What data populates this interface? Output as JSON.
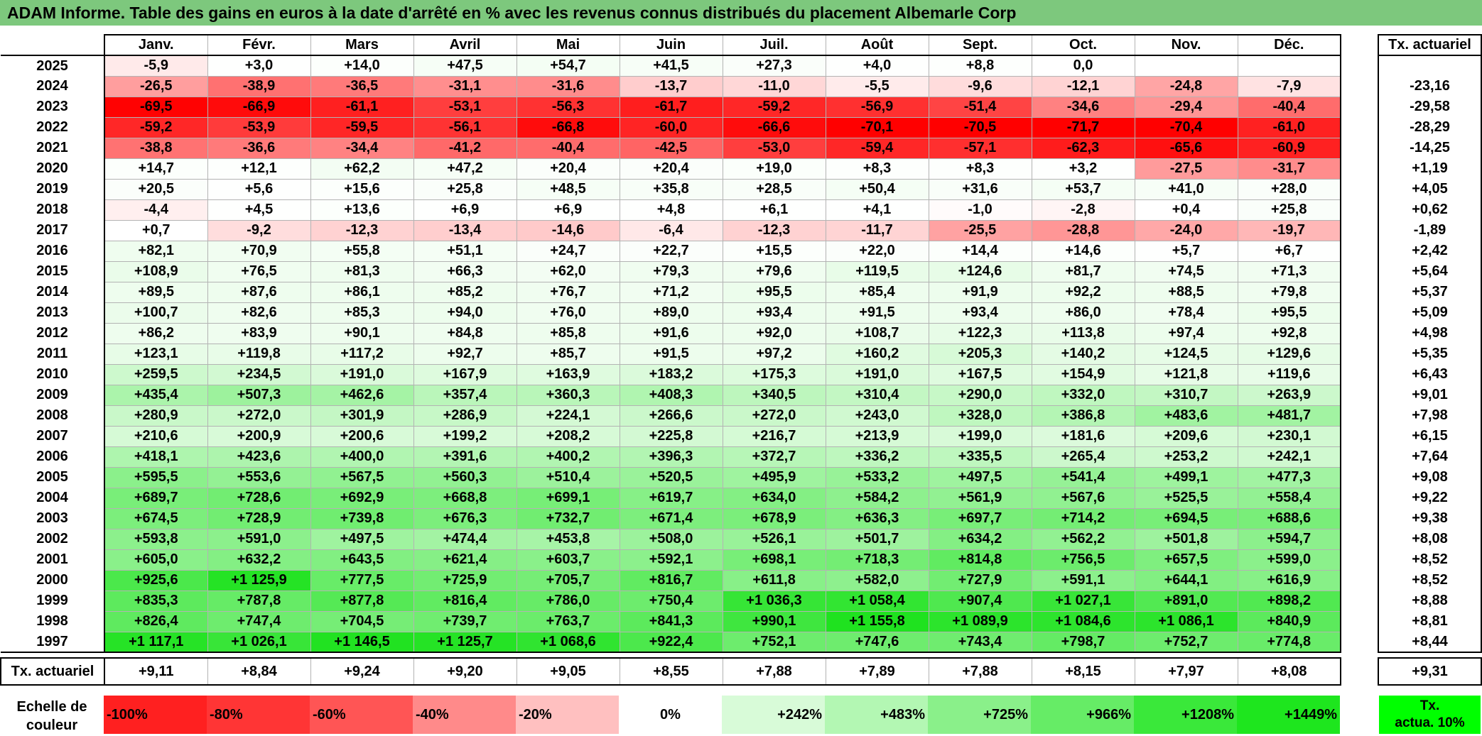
{
  "title": "ADAM Informe. Table des gains en euros à la date d'arrêté en % avec les revenus connus distribués du placement Albemarle Corp",
  "months": [
    "Janv.",
    "Févr.",
    "Mars",
    "Avril",
    "Mai",
    "Juin",
    "Juil.",
    "Août",
    "Sept.",
    "Oct.",
    "Nov.",
    "Déc."
  ],
  "rate_header": "Tx. actuariel",
  "rows": [
    {
      "year": "2025",
      "values": [
        "-5,9",
        "+3,0",
        "+14,0",
        "+47,5",
        "+54,7",
        "+41,5",
        "+27,3",
        "+4,0",
        "+8,8",
        "0,0",
        "",
        ""
      ],
      "rate": ""
    },
    {
      "year": "2024",
      "values": [
        "-26,5",
        "-38,9",
        "-36,5",
        "-31,1",
        "-31,6",
        "-13,7",
        "-11,0",
        "-5,5",
        "-9,6",
        "-12,1",
        "-24,8",
        "-7,9"
      ],
      "rate": "-23,16"
    },
    {
      "year": "2023",
      "values": [
        "-69,5",
        "-66,9",
        "-61,1",
        "-53,1",
        "-56,3",
        "-61,7",
        "-59,2",
        "-56,9",
        "-51,4",
        "-34,6",
        "-29,4",
        "-40,4"
      ],
      "rate": "-29,58"
    },
    {
      "year": "2022",
      "values": [
        "-59,2",
        "-53,9",
        "-59,5",
        "-56,1",
        "-66,8",
        "-60,0",
        "-66,6",
        "-70,1",
        "-70,5",
        "-71,7",
        "-70,4",
        "-61,0"
      ],
      "rate": "-28,29"
    },
    {
      "year": "2021",
      "values": [
        "-38,8",
        "-36,6",
        "-34,4",
        "-41,2",
        "-40,4",
        "-42,5",
        "-53,0",
        "-59,4",
        "-57,1",
        "-62,3",
        "-65,6",
        "-60,9"
      ],
      "rate": "-14,25"
    },
    {
      "year": "2020",
      "values": [
        "+14,7",
        "+12,1",
        "+62,2",
        "+47,2",
        "+20,4",
        "+20,4",
        "+19,0",
        "+8,3",
        "+8,3",
        "+3,2",
        "-27,5",
        "-31,7"
      ],
      "rate": "+1,19"
    },
    {
      "year": "2019",
      "values": [
        "+20,5",
        "+5,6",
        "+15,6",
        "+25,8",
        "+48,5",
        "+35,8",
        "+28,5",
        "+50,4",
        "+31,6",
        "+53,7",
        "+41,0",
        "+28,0"
      ],
      "rate": "+4,05"
    },
    {
      "year": "2018",
      "values": [
        "-4,4",
        "+4,5",
        "+13,6",
        "+6,9",
        "+6,9",
        "+4,8",
        "+6,1",
        "+4,1",
        "-1,0",
        "-2,8",
        "+0,4",
        "+25,8"
      ],
      "rate": "+0,62"
    },
    {
      "year": "2017",
      "values": [
        "+0,7",
        "-9,2",
        "-12,3",
        "-13,4",
        "-14,6",
        "-6,4",
        "-12,3",
        "-11,7",
        "-25,5",
        "-28,8",
        "-24,0",
        "-19,7"
      ],
      "rate": "-1,89"
    },
    {
      "year": "2016",
      "values": [
        "+82,1",
        "+70,9",
        "+55,8",
        "+51,1",
        "+24,7",
        "+22,7",
        "+15,5",
        "+22,0",
        "+14,4",
        "+14,6",
        "+5,7",
        "+6,7"
      ],
      "rate": "+2,42"
    },
    {
      "year": "2015",
      "values": [
        "+108,9",
        "+76,5",
        "+81,3",
        "+66,3",
        "+62,0",
        "+79,3",
        "+79,6",
        "+119,5",
        "+124,6",
        "+81,7",
        "+74,5",
        "+71,3"
      ],
      "rate": "+5,64"
    },
    {
      "year": "2014",
      "values": [
        "+89,5",
        "+87,6",
        "+86,1",
        "+85,2",
        "+76,7",
        "+71,2",
        "+95,5",
        "+85,4",
        "+91,9",
        "+92,2",
        "+88,5",
        "+79,8"
      ],
      "rate": "+5,37"
    },
    {
      "year": "2013",
      "values": [
        "+100,7",
        "+82,6",
        "+85,3",
        "+94,0",
        "+76,0",
        "+89,0",
        "+93,4",
        "+91,5",
        "+93,4",
        "+86,0",
        "+78,4",
        "+95,5"
      ],
      "rate": "+5,09"
    },
    {
      "year": "2012",
      "values": [
        "+86,2",
        "+83,9",
        "+90,1",
        "+84,8",
        "+85,8",
        "+91,6",
        "+92,0",
        "+108,7",
        "+122,3",
        "+113,8",
        "+97,4",
        "+92,8"
      ],
      "rate": "+4,98"
    },
    {
      "year": "2011",
      "values": [
        "+123,1",
        "+119,8",
        "+117,2",
        "+92,7",
        "+85,7",
        "+91,5",
        "+97,2",
        "+160,2",
        "+205,3",
        "+140,2",
        "+124,5",
        "+129,6"
      ],
      "rate": "+5,35"
    },
    {
      "year": "2010",
      "values": [
        "+259,5",
        "+234,5",
        "+191,0",
        "+167,9",
        "+163,9",
        "+183,2",
        "+175,3",
        "+191,0",
        "+167,5",
        "+154,9",
        "+121,8",
        "+119,6"
      ],
      "rate": "+6,43"
    },
    {
      "year": "2009",
      "values": [
        "+435,4",
        "+507,3",
        "+462,6",
        "+357,4",
        "+360,3",
        "+408,3",
        "+340,5",
        "+310,4",
        "+290,0",
        "+332,0",
        "+310,7",
        "+263,9"
      ],
      "rate": "+9,01"
    },
    {
      "year": "2008",
      "values": [
        "+280,9",
        "+272,0",
        "+301,9",
        "+286,9",
        "+224,1",
        "+266,6",
        "+272,0",
        "+243,0",
        "+328,0",
        "+386,8",
        "+483,6",
        "+481,7"
      ],
      "rate": "+7,98"
    },
    {
      "year": "2007",
      "values": [
        "+210,6",
        "+200,9",
        "+200,6",
        "+199,2",
        "+208,2",
        "+225,8",
        "+216,7",
        "+213,9",
        "+199,0",
        "+181,6",
        "+209,6",
        "+230,1"
      ],
      "rate": "+6,15"
    },
    {
      "year": "2006",
      "values": [
        "+418,1",
        "+423,6",
        "+400,0",
        "+391,6",
        "+400,2",
        "+396,3",
        "+372,7",
        "+336,2",
        "+335,5",
        "+265,4",
        "+253,2",
        "+242,1"
      ],
      "rate": "+7,64"
    },
    {
      "year": "2005",
      "values": [
        "+595,5",
        "+553,6",
        "+567,5",
        "+560,3",
        "+510,4",
        "+520,5",
        "+495,9",
        "+533,2",
        "+497,5",
        "+541,4",
        "+499,1",
        "+477,3"
      ],
      "rate": "+9,08"
    },
    {
      "year": "2004",
      "values": [
        "+689,7",
        "+728,6",
        "+692,9",
        "+668,8",
        "+699,1",
        "+619,7",
        "+634,0",
        "+584,2",
        "+561,9",
        "+567,6",
        "+525,5",
        "+558,4"
      ],
      "rate": "+9,22"
    },
    {
      "year": "2003",
      "values": [
        "+674,5",
        "+728,9",
        "+739,8",
        "+676,3",
        "+732,7",
        "+671,4",
        "+678,9",
        "+636,3",
        "+697,7",
        "+714,2",
        "+694,5",
        "+688,6"
      ],
      "rate": "+9,38"
    },
    {
      "year": "2002",
      "values": [
        "+593,8",
        "+591,0",
        "+497,5",
        "+474,4",
        "+453,8",
        "+508,0",
        "+526,1",
        "+501,7",
        "+634,2",
        "+562,2",
        "+501,8",
        "+594,7"
      ],
      "rate": "+8,08"
    },
    {
      "year": "2001",
      "values": [
        "+605,0",
        "+632,2",
        "+643,5",
        "+621,4",
        "+603,7",
        "+592,1",
        "+698,1",
        "+718,3",
        "+814,8",
        "+756,5",
        "+657,5",
        "+599,0"
      ],
      "rate": "+8,52"
    },
    {
      "year": "2000",
      "values": [
        "+925,6",
        "+1 125,9",
        "+777,5",
        "+725,9",
        "+705,7",
        "+816,7",
        "+611,8",
        "+582,0",
        "+727,9",
        "+591,1",
        "+644,1",
        "+616,9"
      ],
      "rate": "+8,52"
    },
    {
      "year": "1999",
      "values": [
        "+835,3",
        "+787,8",
        "+877,8",
        "+816,4",
        "+786,0",
        "+750,4",
        "+1 036,3",
        "+1 058,4",
        "+907,4",
        "+1 027,1",
        "+891,0",
        "+898,2"
      ],
      "rate": "+8,88"
    },
    {
      "year": "1998",
      "values": [
        "+826,4",
        "+747,4",
        "+704,5",
        "+739,7",
        "+763,7",
        "+841,3",
        "+990,1",
        "+1 155,8",
        "+1 089,9",
        "+1 084,6",
        "+1 086,1",
        "+840,9"
      ],
      "rate": "+8,81"
    },
    {
      "year": "1997",
      "values": [
        "+1 117,1",
        "+1 026,1",
        "+1 146,5",
        "+1 125,7",
        "+1 068,6",
        "+922,4",
        "+752,1",
        "+747,6",
        "+743,4",
        "+798,7",
        "+752,7",
        "+774,8"
      ],
      "rate": "+8,44"
    }
  ],
  "summary": {
    "label": "Tx. actuariel",
    "values": [
      "+9,11",
      "+8,84",
      "+9,24",
      "+9,20",
      "+9,05",
      "+8,55",
      "+7,88",
      "+7,89",
      "+7,88",
      "+8,15",
      "+7,97",
      "+8,08"
    ],
    "rate": "+9,31"
  },
  "scale": {
    "label": "Echelle de\ncouleur",
    "cells": [
      {
        "text": "-100%",
        "color": "#ff2020"
      },
      {
        "text": "-80%",
        "color": "#ff3535"
      },
      {
        "text": "-60%",
        "color": "#ff5555"
      },
      {
        "text": "-40%",
        "color": "#ff8a8a"
      },
      {
        "text": "-20%",
        "color": "#ffc0c0"
      },
      {
        "text": "0%",
        "color": "#ffffff"
      },
      {
        "text": "+242%",
        "color": "#d8fbd8"
      },
      {
        "text": "+483%",
        "color": "#b3f7b3"
      },
      {
        "text": "+725%",
        "color": "#8af08a"
      },
      {
        "text": "+966%",
        "color": "#66ec66"
      },
      {
        "text": "+1208%",
        "color": "#3ae83a"
      },
      {
        "text": "+1449%",
        "color": "#1ee61e"
      }
    ],
    "tx_label": "Tx.\nactua. 10%",
    "tx_color": "#00ff00"
  },
  "colors": {
    "title_bg": "#7dc87d",
    "negative_max": "#ff0000",
    "positive_max": "#00e600"
  }
}
